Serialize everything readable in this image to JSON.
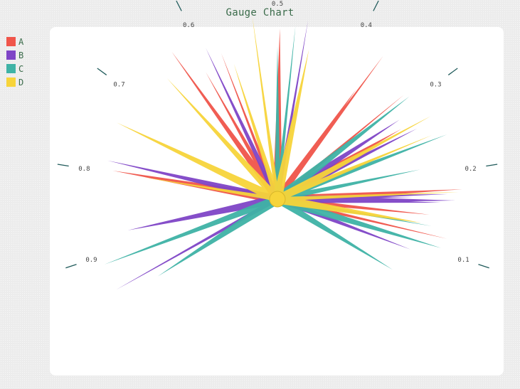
{
  "chart_data": {
    "type": "gauge",
    "title": "Gauge Chart",
    "tick_labels": [
      "0.1",
      "0.2",
      "0.3",
      "0.4",
      "0.5",
      "0.6",
      "0.7",
      "0.8",
      "0.9"
    ],
    "tick_values": [
      0.1,
      0.2,
      0.3,
      0.4,
      0.5,
      0.6,
      0.7,
      0.8,
      0.9
    ],
    "range": [
      0,
      1
    ],
    "legend_position": "top-left",
    "series": [
      {
        "name": "A",
        "color": "#f0554a",
        "values": [
          0.118,
          0.145,
          0.178,
          0.276,
          0.313,
          0.365,
          0.368,
          0.497,
          0.578,
          0.609,
          0.632,
          0.797
        ]
      },
      {
        "name": "B",
        "color": "#7f45c7",
        "values": [
          0.09,
          0.162,
          0.165,
          0.17,
          0.173,
          0.266,
          0.289,
          0.464,
          0.594,
          0.786,
          0.877,
          0.942
        ]
      },
      {
        "name": "C",
        "color": "#3fb3a6",
        "values": [
          0.05,
          0.105,
          0.13,
          0.21,
          0.244,
          0.307,
          0.478,
          0.5,
          0.91,
          0.955
        ]
      },
      {
        "name": "D",
        "color": "#f7d43a",
        "values": [
          0.132,
          0.175,
          0.25,
          0.272,
          0.456,
          0.529,
          0.566,
          0.657,
          0.739,
          0.799
        ]
      }
    ]
  }
}
